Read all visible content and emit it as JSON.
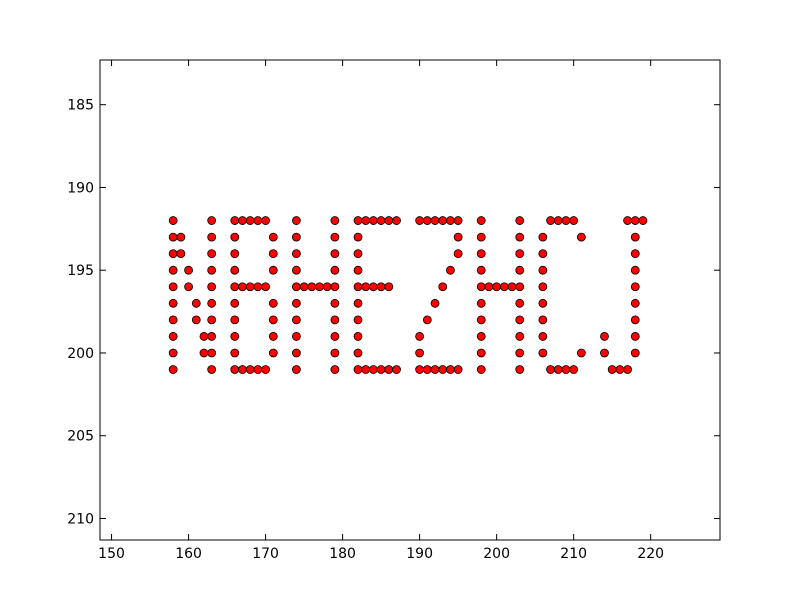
{
  "chart_data": {
    "type": "scatter",
    "title": "",
    "xlabel": "",
    "ylabel": "",
    "xlim": [
      148.5,
      229
    ],
    "ylim": [
      211.3,
      182.3
    ],
    "y_inverted": true,
    "grid": false,
    "x_ticks": [
      150,
      160,
      170,
      180,
      190,
      200,
      210,
      220
    ],
    "y_ticks": [
      185,
      190,
      195,
      200,
      205,
      210
    ],
    "x_tick_labels": [
      "150",
      "160",
      "170",
      "180",
      "190",
      "200",
      "210",
      "220"
    ],
    "y_tick_labels": [
      "185",
      "190",
      "195",
      "200",
      "205",
      "210"
    ],
    "marker_color": "#ff0000",
    "marker_edge_color": "#000000",
    "series": [
      {
        "points": [
          [
            158,
            192
          ],
          [
            158,
            193
          ],
          [
            158,
            194
          ],
          [
            158,
            195
          ],
          [
            158,
            196
          ],
          [
            158,
            197
          ],
          [
            158,
            198
          ],
          [
            158,
            199
          ],
          [
            158,
            200
          ],
          [
            158,
            201
          ],
          [
            159,
            193
          ],
          [
            159,
            194
          ],
          [
            160,
            195
          ],
          [
            160,
            196
          ],
          [
            161,
            197
          ],
          [
            161,
            198
          ],
          [
            162,
            199
          ],
          [
            162,
            200
          ],
          [
            163,
            192
          ],
          [
            163,
            193
          ],
          [
            163,
            194
          ],
          [
            163,
            195
          ],
          [
            163,
            196
          ],
          [
            163,
            197
          ],
          [
            163,
            198
          ],
          [
            163,
            199
          ],
          [
            163,
            200
          ],
          [
            163,
            201
          ],
          [
            166,
            192
          ],
          [
            166,
            193
          ],
          [
            166,
            194
          ],
          [
            166,
            195
          ],
          [
            166,
            196
          ],
          [
            166,
            197
          ],
          [
            166,
            198
          ],
          [
            166,
            199
          ],
          [
            166,
            200
          ],
          [
            166,
            201
          ],
          [
            167,
            192
          ],
          [
            168,
            192
          ],
          [
            169,
            192
          ],
          [
            170,
            192
          ],
          [
            167,
            196
          ],
          [
            168,
            196
          ],
          [
            169,
            196
          ],
          [
            170,
            196
          ],
          [
            167,
            201
          ],
          [
            168,
            201
          ],
          [
            169,
            201
          ],
          [
            170,
            201
          ],
          [
            171,
            193
          ],
          [
            171,
            194
          ],
          [
            171,
            195
          ],
          [
            171,
            197
          ],
          [
            171,
            198
          ],
          [
            171,
            199
          ],
          [
            171,
            200
          ],
          [
            174,
            192
          ],
          [
            174,
            193
          ],
          [
            174,
            194
          ],
          [
            174,
            195
          ],
          [
            174,
            196
          ],
          [
            174,
            197
          ],
          [
            174,
            198
          ],
          [
            174,
            199
          ],
          [
            174,
            200
          ],
          [
            174,
            201
          ],
          [
            175,
            196
          ],
          [
            176,
            196
          ],
          [
            177,
            196
          ],
          [
            178,
            196
          ],
          [
            179,
            192
          ],
          [
            179,
            193
          ],
          [
            179,
            194
          ],
          [
            179,
            195
          ],
          [
            179,
            196
          ],
          [
            179,
            197
          ],
          [
            179,
            198
          ],
          [
            179,
            199
          ],
          [
            179,
            200
          ],
          [
            179,
            201
          ],
          [
            182,
            192
          ],
          [
            182,
            193
          ],
          [
            182,
            194
          ],
          [
            182,
            195
          ],
          [
            182,
            196
          ],
          [
            182,
            197
          ],
          [
            182,
            198
          ],
          [
            182,
            199
          ],
          [
            182,
            200
          ],
          [
            182,
            201
          ],
          [
            183,
            192
          ],
          [
            184,
            192
          ],
          [
            185,
            192
          ],
          [
            186,
            192
          ],
          [
            187,
            192
          ],
          [
            183,
            196
          ],
          [
            184,
            196
          ],
          [
            185,
            196
          ],
          [
            186,
            196
          ],
          [
            183,
            201
          ],
          [
            184,
            201
          ],
          [
            185,
            201
          ],
          [
            186,
            201
          ],
          [
            187,
            201
          ],
          [
            190,
            192
          ],
          [
            191,
            192
          ],
          [
            192,
            192
          ],
          [
            193,
            192
          ],
          [
            194,
            192
          ],
          [
            195,
            192
          ],
          [
            195,
            193
          ],
          [
            195,
            194
          ],
          [
            194,
            195
          ],
          [
            193,
            196
          ],
          [
            192,
            197
          ],
          [
            191,
            198
          ],
          [
            190,
            199
          ],
          [
            190,
            200
          ],
          [
            190,
            201
          ],
          [
            191,
            201
          ],
          [
            192,
            201
          ],
          [
            193,
            201
          ],
          [
            194,
            201
          ],
          [
            195,
            201
          ],
          [
            198,
            192
          ],
          [
            198,
            193
          ],
          [
            198,
            194
          ],
          [
            198,
            195
          ],
          [
            198,
            196
          ],
          [
            198,
            197
          ],
          [
            198,
            198
          ],
          [
            198,
            199
          ],
          [
            198,
            200
          ],
          [
            198,
            201
          ],
          [
            199,
            196
          ],
          [
            200,
            196
          ],
          [
            201,
            196
          ],
          [
            202,
            196
          ],
          [
            203,
            192
          ],
          [
            203,
            193
          ],
          [
            203,
            194
          ],
          [
            203,
            195
          ],
          [
            203,
            196
          ],
          [
            203,
            197
          ],
          [
            203,
            198
          ],
          [
            203,
            199
          ],
          [
            203,
            200
          ],
          [
            203,
            201
          ],
          [
            206,
            193
          ],
          [
            206,
            194
          ],
          [
            206,
            195
          ],
          [
            206,
            196
          ],
          [
            206,
            197
          ],
          [
            206,
            198
          ],
          [
            206,
            199
          ],
          [
            206,
            200
          ],
          [
            207,
            192
          ],
          [
            208,
            192
          ],
          [
            209,
            192
          ],
          [
            210,
            192
          ],
          [
            211,
            193
          ],
          [
            207,
            201
          ],
          [
            208,
            201
          ],
          [
            209,
            201
          ],
          [
            210,
            201
          ],
          [
            211,
            200
          ],
          [
            217,
            192
          ],
          [
            218,
            192
          ],
          [
            219,
            192
          ],
          [
            218,
            193
          ],
          [
            218,
            194
          ],
          [
            218,
            195
          ],
          [
            218,
            196
          ],
          [
            218,
            197
          ],
          [
            218,
            198
          ],
          [
            218,
            199
          ],
          [
            218,
            200
          ],
          [
            217,
            201
          ],
          [
            216,
            201
          ],
          [
            215,
            201
          ],
          [
            214,
            200
          ],
          [
            214,
            199
          ]
        ]
      }
    ]
  }
}
